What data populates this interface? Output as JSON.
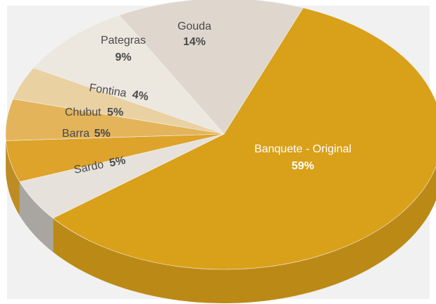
{
  "chart_data": {
    "type": "pie",
    "title": "",
    "slices": [
      {
        "label": "Banquete - Original",
        "value": 59,
        "display": "59%",
        "color": "#d9a019"
      },
      {
        "label": "Sardo",
        "value": 5,
        "display": "5%",
        "color": "#e6e1da"
      },
      {
        "label": "Barra",
        "value": 5,
        "display": "5%",
        "color": "#dda32a"
      },
      {
        "label": "Chubut",
        "value": 5,
        "display": "5%",
        "color": "#e3b45a"
      },
      {
        "label": "Fontina",
        "value": 4,
        "display": "4%",
        "color": "#ead1a1"
      },
      {
        "label": "Pategras",
        "value": 9,
        "display": "9%",
        "color": "#ece7df"
      },
      {
        "label": "Gouda",
        "value": 14,
        "display": "14%",
        "color": "#dfd7ce"
      }
    ],
    "style": "3d"
  }
}
